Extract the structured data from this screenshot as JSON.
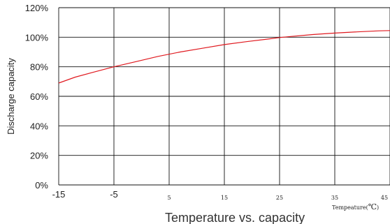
{
  "chart_data": {
    "type": "line",
    "title": "Temperature vs. capacity",
    "ylabel": "Discharge capacity",
    "xlabel_prefix": "Tempeature(",
    "xlabel_unit": "℃",
    "xlabel_suffix": ")",
    "x_ticks": [
      "-15",
      "-5",
      "5",
      "15",
      "25",
      "35",
      "45"
    ],
    "y_ticks": [
      "0%",
      "20%",
      "40%",
      "60%",
      "80%",
      "100%",
      "120%"
    ],
    "xlim": [
      -15,
      45
    ],
    "ylim": [
      0,
      120
    ],
    "grid": true,
    "line_color": "#e0191f",
    "series": [
      {
        "x": [
          -15,
          -12,
          -9,
          -5,
          -1,
          3,
          7,
          11,
          15,
          19,
          23,
          25,
          27,
          31,
          35,
          39,
          43,
          45
        ],
        "values": [
          69,
          73,
          76,
          80,
          83.5,
          87,
          90,
          92.5,
          95,
          97,
          98.8,
          99.8,
          100.5,
          101.8,
          102.8,
          103.6,
          104.3,
          104.5
        ]
      }
    ]
  }
}
